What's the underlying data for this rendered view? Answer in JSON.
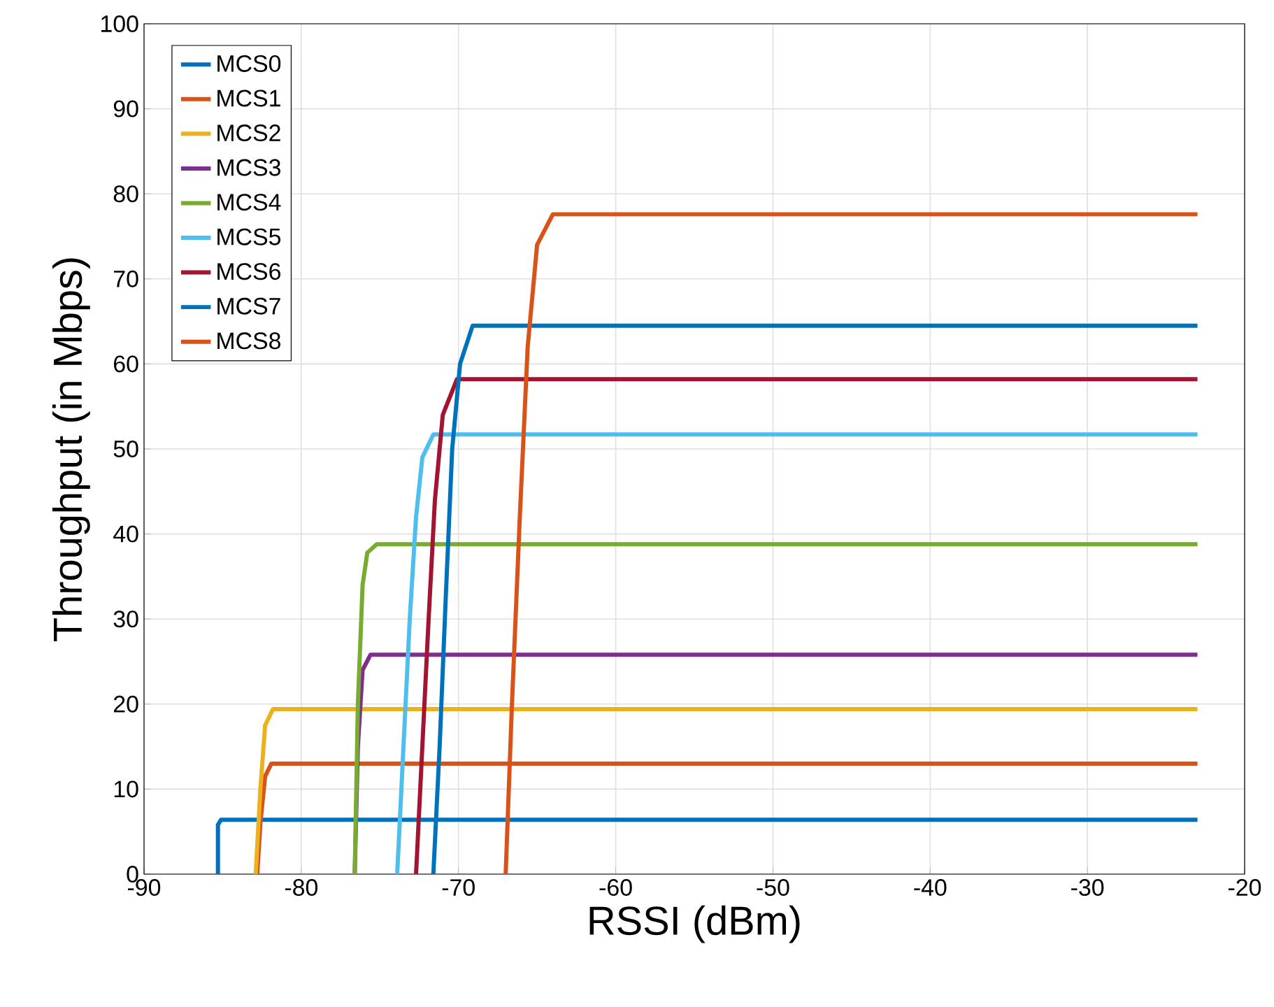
{
  "chart_data": {
    "type": "line",
    "xlabel": "RSSI (dBm)",
    "ylabel": "Throughput (in Mbps)",
    "xlim": [
      -90,
      -20
    ],
    "ylim": [
      0,
      100
    ],
    "xticks": [
      -90,
      -80,
      -70,
      -60,
      -50,
      -40,
      -30,
      -20
    ],
    "yticks": [
      0,
      10,
      20,
      30,
      40,
      50,
      60,
      70,
      80,
      90,
      100
    ],
    "grid": true,
    "legend": "top left",
    "marker": "none",
    "line_style": "solid",
    "series": [
      {
        "name": "MCS0",
        "color": "#0072bd",
        "x": [
          -85.3,
          -85.3,
          -85.1,
          -23
        ],
        "values": [
          0,
          5.8,
          6.4,
          6.4
        ]
      },
      {
        "name": "MCS1",
        "color": "#d95319",
        "x": [
          -82.8,
          -82.6,
          -82.3,
          -81.9,
          -23
        ],
        "values": [
          0,
          6,
          11.5,
          13,
          13
        ]
      },
      {
        "name": "MCS2",
        "color": "#edb120",
        "x": [
          -82.9,
          -82.6,
          -82.3,
          -81.8,
          -23
        ],
        "values": [
          0,
          10,
          17.5,
          19.4,
          19.4
        ]
      },
      {
        "name": "MCS3",
        "color": "#7e2f8e",
        "x": [
          -76.6,
          -76.4,
          -76.1,
          -75.6,
          -23
        ],
        "values": [
          0,
          15,
          24,
          25.8,
          25.8
        ]
      },
      {
        "name": "MCS4",
        "color": "#77ac30",
        "x": [
          -76.6,
          -76.4,
          -76.1,
          -75.8,
          -75.2,
          -23
        ],
        "values": [
          0,
          20,
          34,
          37.8,
          38.8,
          38.8
        ]
      },
      {
        "name": "MCS5",
        "color": "#4dbeee",
        "x": [
          -73.9,
          -73.5,
          -73.1,
          -72.7,
          -72.3,
          -71.6,
          -23
        ],
        "values": [
          0,
          15,
          30,
          42,
          49,
          51.7,
          51.7
        ]
      },
      {
        "name": "MCS6",
        "color": "#a2142f",
        "x": [
          -72.7,
          -72.3,
          -71.9,
          -71.5,
          -71.0,
          -70.1,
          -23
        ],
        "values": [
          0,
          15,
          30,
          44,
          54,
          58.2,
          58.2
        ]
      },
      {
        "name": "MCS7",
        "color": "#0072bd",
        "x": [
          -71.6,
          -71.2,
          -70.8,
          -70.4,
          -69.9,
          -69.1,
          -23
        ],
        "values": [
          0,
          15,
          33,
          50,
          60,
          64.5,
          64.5
        ]
      },
      {
        "name": "MCS8",
        "color": "#d95319",
        "x": [
          -67.0,
          -66.6,
          -66.1,
          -65.6,
          -65.0,
          -64.0,
          -23
        ],
        "values": [
          0,
          20,
          42,
          62,
          74,
          77.6,
          77.6
        ]
      }
    ]
  }
}
